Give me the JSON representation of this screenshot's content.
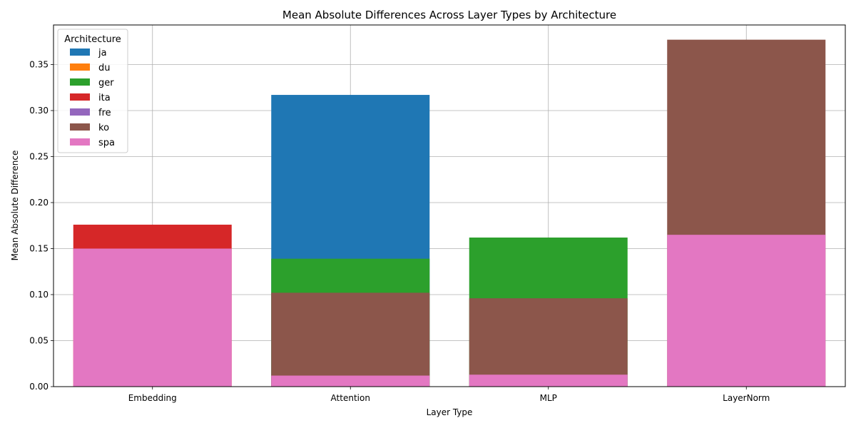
{
  "chart_data": {
    "type": "bar",
    "title": "Mean Absolute Differences Across Layer Types by Architecture",
    "xlabel": "Layer Type",
    "ylabel": "Mean Absolute Difference",
    "categories": [
      "Embedding",
      "Attention",
      "MLP",
      "LayerNorm"
    ],
    "ylim": [
      0,
      0.393
    ],
    "yticks": [
      "0.00",
      "0.05",
      "0.10",
      "0.15",
      "0.20",
      "0.25",
      "0.30",
      "0.35"
    ],
    "grid": true,
    "legend_title": "Architecture",
    "legend_position": "top-left",
    "overlap": "bars drawn in legend order, each from zero; later series paint over earlier ones",
    "series": [
      {
        "name": "ja",
        "color": "#1f77b4",
        "values": [
          null,
          0.317,
          null,
          null
        ]
      },
      {
        "name": "du",
        "color": "#ff7f0e",
        "values": [
          null,
          null,
          null,
          null
        ]
      },
      {
        "name": "ger",
        "color": "#2ca02c",
        "values": [
          null,
          0.139,
          0.162,
          null
        ]
      },
      {
        "name": "ita",
        "color": "#d62728",
        "values": [
          0.176,
          null,
          null,
          null
        ]
      },
      {
        "name": "fre",
        "color": "#9467bd",
        "values": [
          null,
          null,
          null,
          null
        ]
      },
      {
        "name": "ko",
        "color": "#8c564b",
        "values": [
          null,
          0.102,
          0.096,
          0.377
        ]
      },
      {
        "name": "spa",
        "color": "#e377c2",
        "values": [
          0.15,
          0.012,
          0.013,
          0.165
        ]
      }
    ]
  }
}
